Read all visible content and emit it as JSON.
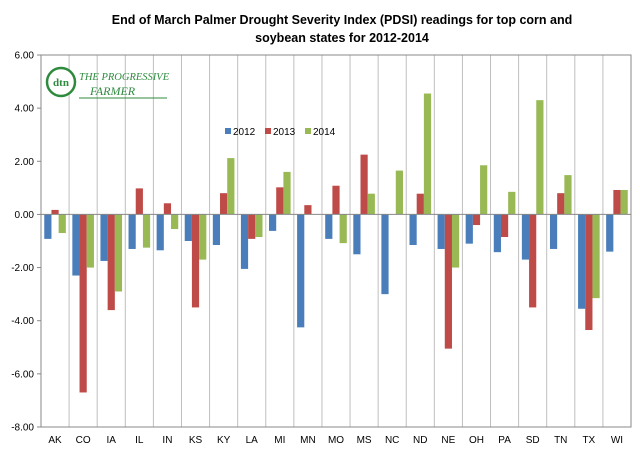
{
  "logo": {
    "mark": "dtn",
    "line1": "THE PROGRESSIVE",
    "line2": "FARMER",
    "color": "#2e8b3e"
  },
  "chart_data": {
    "type": "bar",
    "title": "End of March Palmer Drought Severity Index (PDSI) readings for top corn and soybean states for 2012-2014",
    "title_lines": [
      "End of March Palmer Drought Severity Index (PDSI) readings for top corn and",
      "soybean states for 2012-2014"
    ],
    "xlabel": "",
    "ylabel": "",
    "ylim": [
      -8,
      6
    ],
    "yticks": [
      6,
      4,
      2,
      0,
      -2,
      -4,
      -6,
      -8
    ],
    "ytick_labels": [
      "6.00",
      "4.00",
      "2.00",
      "0.00",
      "-2.00",
      "-4.00",
      "-6.00",
      "-8.00"
    ],
    "grid": "vertical",
    "legend_position": "top-left",
    "categories": [
      "AK",
      "CO",
      "IA",
      "IL",
      "IN",
      "KS",
      "KY",
      "LA",
      "MI",
      "MN",
      "MO",
      "MS",
      "NC",
      "ND",
      "NE",
      "OH",
      "PA",
      "SD",
      "TN",
      "TX",
      "WI"
    ],
    "series": [
      {
        "name": "2012",
        "color": "#4a7ebb",
        "values": [
          -0.92,
          -2.3,
          -1.75,
          -1.3,
          -1.35,
          -1.0,
          -1.15,
          -2.05,
          -0.62,
          -4.25,
          -0.92,
          -1.5,
          -3.0,
          -1.15,
          -1.3,
          -1.1,
          -1.42,
          -1.7,
          -1.3,
          -3.55,
          -1.4
        ]
      },
      {
        "name": "2013",
        "color": "#be4b48",
        "values": [
          0.17,
          -6.7,
          -3.6,
          0.98,
          0.42,
          -3.5,
          0.8,
          -0.92,
          1.02,
          0.35,
          1.08,
          2.25,
          0.0,
          0.78,
          -5.05,
          -0.4,
          -0.85,
          -3.5,
          0.8,
          -4.35,
          0.92
        ]
      },
      {
        "name": "2014",
        "color": "#98b954",
        "values": [
          -0.7,
          -2.0,
          -2.9,
          -1.25,
          -0.55,
          -1.7,
          2.12,
          -0.85,
          1.6,
          0.0,
          -1.08,
          0.78,
          1.65,
          4.55,
          -2.0,
          1.85,
          0.85,
          4.3,
          1.48,
          -3.15,
          0.92
        ]
      }
    ]
  }
}
